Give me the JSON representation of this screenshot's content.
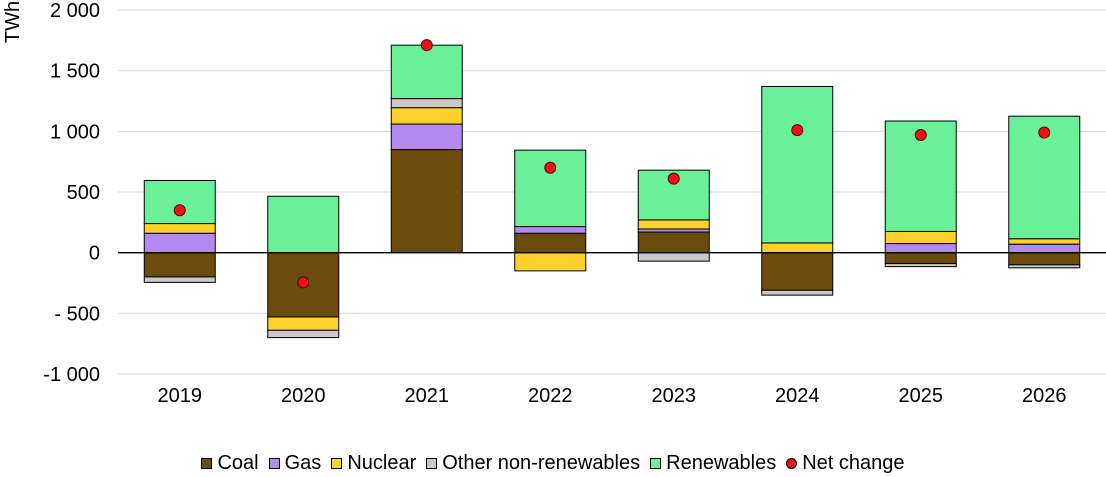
{
  "chart_data": {
    "type": "bar",
    "stacked": true,
    "title": "",
    "xlabel": "",
    "ylabel": "TWh",
    "ylim": [
      -1000,
      2000
    ],
    "yticks": [
      2000,
      1500,
      1000,
      500,
      0,
      -500,
      -1000
    ],
    "ytick_labels": [
      "2 000",
      "1 500",
      "1 000",
      "500",
      "0",
      "- 500",
      "-1 000"
    ],
    "categories": [
      "2019",
      "2020",
      "2021",
      "2022",
      "2023",
      "2024",
      "2025",
      "2026"
    ],
    "series": [
      {
        "name": "Coal",
        "color": "#6b4c0c",
        "values": [
          -200,
          -530,
          850,
          160,
          170,
          -310,
          -90,
          -100
        ]
      },
      {
        "name": "Gas",
        "color": "#b28af0",
        "values": [
          160,
          0,
          210,
          55,
          25,
          0,
          75,
          70
        ]
      },
      {
        "name": "Nuclear",
        "color": "#fcd12c",
        "values": [
          80,
          -110,
          135,
          -150,
          75,
          80,
          100,
          45
        ]
      },
      {
        "name": "Other non-renewables",
        "color": "#c8c8c8",
        "values": [
          -45,
          -60,
          75,
          0,
          -70,
          -40,
          -25,
          -25
        ]
      },
      {
        "name": "Renewables",
        "color": "#6bf09a",
        "values": [
          355,
          465,
          440,
          630,
          410,
          1290,
          910,
          1010
        ]
      }
    ],
    "net_change": {
      "name": "Net change",
      "color": "#ee1111",
      "values": [
        350,
        -245,
        1710,
        700,
        610,
        1010,
        970,
        990
      ]
    },
    "legend_position": "bottom",
    "grid": true
  }
}
